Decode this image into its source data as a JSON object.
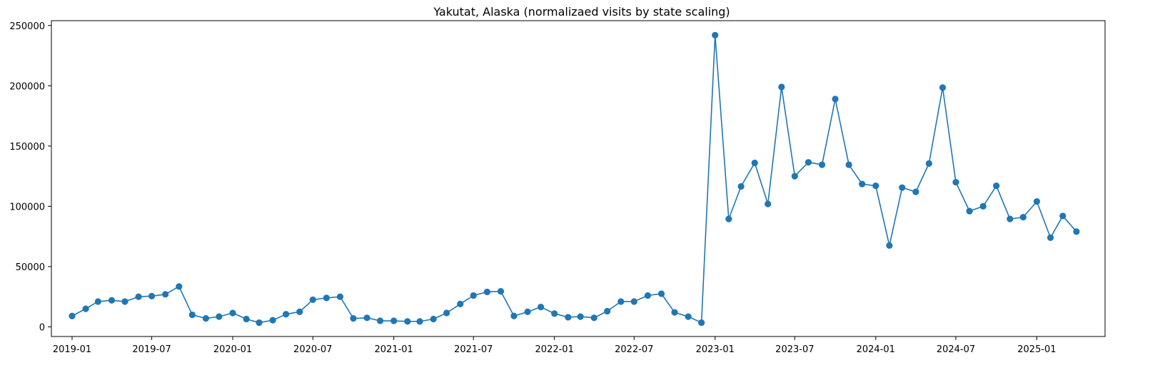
{
  "chart_data": {
    "type": "line",
    "title": "Yakutat, Alaska (normalizaed visits by state scaling)",
    "xlabel": "",
    "ylabel": "",
    "x_axis_type": "date",
    "x_range": [
      "2018-11-15",
      "2025-06-05"
    ],
    "ylim": [
      -8000,
      254000
    ],
    "grid": false,
    "legend": "none",
    "marker": "circle",
    "color": "#1f77b4",
    "x_ticks": [
      "2019-01",
      "2019-07",
      "2020-01",
      "2020-07",
      "2021-01",
      "2021-07",
      "2022-01",
      "2022-07",
      "2023-01",
      "2023-07",
      "2024-01",
      "2024-07",
      "2025-01"
    ],
    "y_ticks": [
      0,
      50000,
      100000,
      150000,
      200000,
      250000
    ],
    "series": [
      {
        "x": [
          "2019-01-01",
          "2019-02-01",
          "2019-03-01",
          "2019-04-01",
          "2019-05-01",
          "2019-06-01",
          "2019-07-01",
          "2019-08-01",
          "2019-09-01",
          "2019-10-01",
          "2019-11-01",
          "2019-12-01",
          "2020-01-01",
          "2020-02-01",
          "2020-03-01",
          "2020-04-01",
          "2020-05-01",
          "2020-06-01",
          "2020-07-01",
          "2020-08-01",
          "2020-09-01",
          "2020-10-01",
          "2020-11-01",
          "2020-12-01",
          "2021-01-01",
          "2021-02-01",
          "2021-03-01",
          "2021-04-01",
          "2021-05-01",
          "2021-06-01",
          "2021-07-01",
          "2021-08-01",
          "2021-09-01",
          "2021-10-01",
          "2021-11-01",
          "2021-12-01",
          "2022-01-01",
          "2022-02-01",
          "2022-03-01",
          "2022-04-01",
          "2022-05-01",
          "2022-06-01",
          "2022-07-01",
          "2022-08-01",
          "2022-09-01",
          "2022-10-01",
          "2022-11-01",
          "2022-12-01",
          "2023-01-01",
          "2023-02-01",
          "2023-03-01",
          "2023-04-01",
          "2023-05-01",
          "2023-06-01",
          "2023-07-01",
          "2023-08-01",
          "2023-09-01",
          "2023-10-01",
          "2023-11-01",
          "2023-12-01",
          "2024-01-01",
          "2024-02-01",
          "2024-03-01",
          "2024-04-01",
          "2024-05-01",
          "2024-06-01",
          "2024-07-01",
          "2024-08-01",
          "2024-09-01",
          "2024-10-01",
          "2024-11-01",
          "2024-12-01",
          "2025-01-01",
          "2025-02-01",
          "2025-03-01",
          "2025-04-01"
        ],
        "values": [
          9000,
          15000,
          21000,
          22000,
          21000,
          25000,
          25500,
          27000,
          33500,
          10000,
          7000,
          8500,
          11500,
          6500,
          3500,
          5500,
          10500,
          12500,
          22500,
          24000,
          25000,
          7000,
          7500,
          5000,
          5000,
          4500,
          4500,
          6500,
          11500,
          19000,
          26000,
          29000,
          29500,
          9000,
          12500,
          16500,
          11000,
          8000,
          8500,
          7500,
          13000,
          21000,
          21000,
          26000,
          27500,
          12000,
          8500,
          3500,
          242000,
          89500,
          116500,
          136000,
          102000,
          199000,
          125000,
          136500,
          134500,
          189000,
          134500,
          118500,
          117000,
          67500,
          115500,
          112000,
          135500,
          198500,
          120000,
          96000,
          100000,
          117000,
          89500,
          91000,
          104000,
          74000,
          92000,
          79000
        ]
      }
    ]
  }
}
